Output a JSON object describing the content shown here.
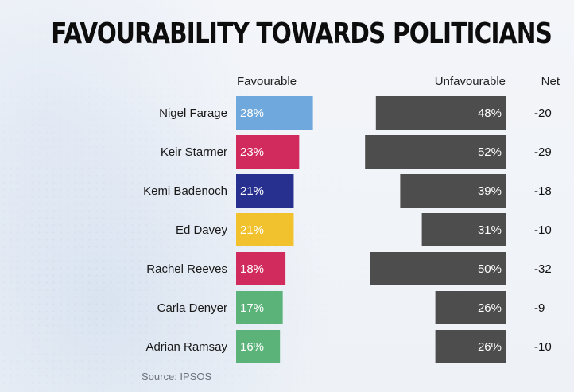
{
  "title": "FAVOURABILITY TOWARDS POLITICIANS",
  "columns": {
    "favourable": "Favourable",
    "unfavourable": "Unfavourable",
    "net": "Net"
  },
  "source": "Source: IPSOS",
  "colors": {
    "unfavourable_bar": "#4d4d4d",
    "label_on_bar": "#ffffff",
    "background": "#eef2f7"
  },
  "chart_data": {
    "type": "bar",
    "title": "FAVOURABILITY TOWARDS POLITICIANS",
    "categories": [
      "Nigel Farage",
      "Keir Starmer",
      "Kemi Badenoch",
      "Ed Davey",
      "Rachel Reeves",
      "Carla Denyer",
      "Adrian Ramsay"
    ],
    "series": [
      {
        "name": "Favourable",
        "values": [
          28,
          23,
          21,
          21,
          18,
          17,
          16
        ],
        "labels": [
          "28%",
          "23%",
          "21%",
          "21%",
          "18%",
          "17%",
          "16%"
        ],
        "colors": [
          "#6fa8dc",
          "#d12a5c",
          "#27308f",
          "#f2c12e",
          "#d12a5c",
          "#5cb37a",
          "#5cb37a"
        ]
      },
      {
        "name": "Unfavourable",
        "values": [
          48,
          52,
          39,
          31,
          50,
          26,
          26
        ],
        "labels": [
          "48%",
          "52%",
          "39%",
          "31%",
          "50%",
          "26%",
          "26%"
        ],
        "color": "#4d4d4d"
      }
    ],
    "net": [
      "-20",
      "-29",
      "-18",
      "-10",
      "-32",
      "-9",
      "-10"
    ]
  }
}
